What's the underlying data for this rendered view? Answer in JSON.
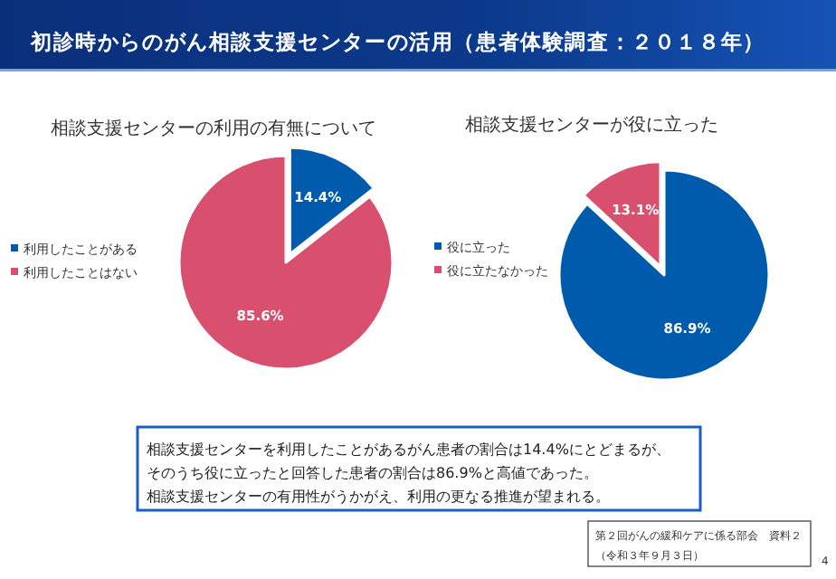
{
  "chart_data": [
    {
      "type": "pie",
      "title": "相談支援センターの利用の有無について",
      "categories": [
        "利用したことがある",
        "利用したことはない"
      ],
      "values": [
        14.4,
        85.6
      ],
      "colors": [
        "#005bac",
        "#d94f6e"
      ],
      "value_labels": [
        "14.4%",
        "85.6%"
      ],
      "legend": "left"
    },
    {
      "type": "pie",
      "title": "相談支援センターが役に立った",
      "categories": [
        "役に立った",
        "役に立たなかった"
      ],
      "values": [
        86.9,
        13.1
      ],
      "colors": [
        "#005bac",
        "#d94f6e"
      ],
      "value_labels": [
        "86.9%",
        "13.1%"
      ],
      "legend": "left"
    },
    {
      "type": "other",
      "title": "初診時からのがん相談支援センターの活用（患者体験調査：２０１８年）",
      "annotations": [
        "相談支援センターを利用したことがあるがん患者の割合は14.4%にとどまるが、",
        "そのうち役に立ったと回答した患者の割合は86.9%と高値であった。",
        "相談支援センターの有用性がうかがえ、利用の更なる推進が望まれる。",
        "第２回がんの緩和ケアに係る部会　資料２",
        "（令和３年９月３日）",
        "4"
      ]
    }
  ]
}
